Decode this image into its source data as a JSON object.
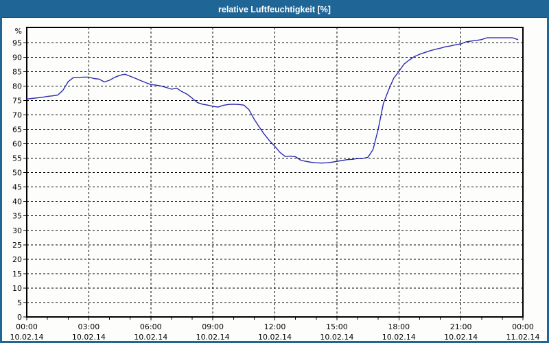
{
  "window": {
    "title": "relative Luftfeuchtigkeit [%]"
  },
  "colors": {
    "titlebar_bg": "#1f6596",
    "title_text": "#ffffff",
    "frame_border": "#1f6596",
    "plot_background": "#fdfdfc",
    "axis": "#000000",
    "gridline": "#000000",
    "series_line": "#2a2ab0"
  },
  "chart_data": {
    "type": "line",
    "title": "relative Luftfeuchtigkeit [%]",
    "xlabel": "",
    "ylabel": "",
    "grid": true,
    "legend": "none",
    "xlim_hours": [
      0,
      24
    ],
    "ylim": [
      0,
      100
    ],
    "y_axis": {
      "unit": "%",
      "tick_step": 5,
      "ticks": [
        0,
        5,
        10,
        15,
        20,
        25,
        30,
        35,
        40,
        45,
        50,
        55,
        60,
        65,
        70,
        75,
        80,
        85,
        90,
        95
      ]
    },
    "x_axis": {
      "minor_tick_every_hours": 1,
      "major_ticks": [
        {
          "hour": 0,
          "time": "00:00",
          "date": "10.02.14"
        },
        {
          "hour": 3,
          "time": "03:00",
          "date": "10.02.14"
        },
        {
          "hour": 6,
          "time": "06:00",
          "date": "10.02.14"
        },
        {
          "hour": 9,
          "time": "09:00",
          "date": "10.02.14"
        },
        {
          "hour": 12,
          "time": "12:00",
          "date": "10.02.14"
        },
        {
          "hour": 15,
          "time": "15:00",
          "date": "10.02.14"
        },
        {
          "hour": 18,
          "time": "18:00",
          "date": "10.02.14"
        },
        {
          "hour": 21,
          "time": "21:00",
          "date": "10.02.14"
        },
        {
          "hour": 24,
          "time": "00:00",
          "date": "11.02.14"
        }
      ]
    },
    "series": [
      {
        "name": "relative Luftfeuchtigkeit [%]",
        "color": "#2a2ab0",
        "x_hours": [
          0,
          0.25,
          0.5,
          0.75,
          1,
          1.25,
          1.5,
          1.75,
          2,
          2.25,
          2.5,
          2.75,
          3,
          3.25,
          3.5,
          3.75,
          4,
          4.25,
          4.5,
          4.75,
          5,
          5.25,
          5.5,
          5.75,
          6,
          6.25,
          6.5,
          6.75,
          7,
          7.25,
          7.5,
          7.75,
          8,
          8.25,
          8.5,
          8.75,
          9,
          9.25,
          9.5,
          9.75,
          10,
          10.25,
          10.5,
          10.75,
          11,
          11.25,
          11.5,
          11.75,
          12,
          12.25,
          12.5,
          12.75,
          13,
          13.25,
          13.5,
          13.75,
          14,
          14.25,
          14.5,
          14.75,
          15,
          15.25,
          15.5,
          15.75,
          16,
          16.25,
          16.5,
          16.75,
          17,
          17.25,
          17.5,
          17.75,
          18,
          18.25,
          18.5,
          18.75,
          19,
          19.25,
          19.5,
          19.75,
          20,
          20.25,
          20.5,
          20.75,
          21,
          21.25,
          21.5,
          21.75,
          22,
          22.25,
          22.5,
          22.75,
          23,
          23.25,
          23.5,
          23.75
        ],
        "values": [
          75.5,
          75.7,
          75.9,
          76.1,
          76.4,
          76.6,
          76.9,
          78.5,
          81.5,
          82.9,
          83.0,
          83.1,
          83.1,
          82.6,
          82.4,
          81.4,
          82.0,
          83.0,
          83.7,
          84.1,
          83.4,
          82.7,
          81.9,
          81.2,
          80.5,
          80.3,
          80.0,
          79.5,
          78.9,
          79.3,
          78.1,
          77.2,
          75.8,
          74.3,
          73.7,
          73.4,
          73.0,
          72.7,
          73.3,
          73.6,
          73.7,
          73.6,
          73.4,
          71.8,
          68.5,
          65.8,
          63.2,
          61.0,
          59.1,
          57.0,
          55.6,
          55.7,
          55.5,
          54.3,
          53.9,
          53.6,
          53.4,
          53.3,
          53.4,
          53.6,
          53.9,
          54.2,
          54.5,
          54.6,
          54.9,
          54.9,
          55.3,
          58.0,
          65.0,
          74.0,
          78.6,
          82.7,
          85.1,
          87.6,
          89.0,
          90.2,
          91.0,
          91.6,
          92.2,
          92.7,
          93.1,
          93.6,
          93.9,
          94.3,
          94.6,
          95.3,
          95.6,
          95.8,
          96.1,
          96.7,
          96.7,
          96.7,
          96.7,
          96.7,
          96.7,
          96.1
        ]
      }
    ]
  }
}
